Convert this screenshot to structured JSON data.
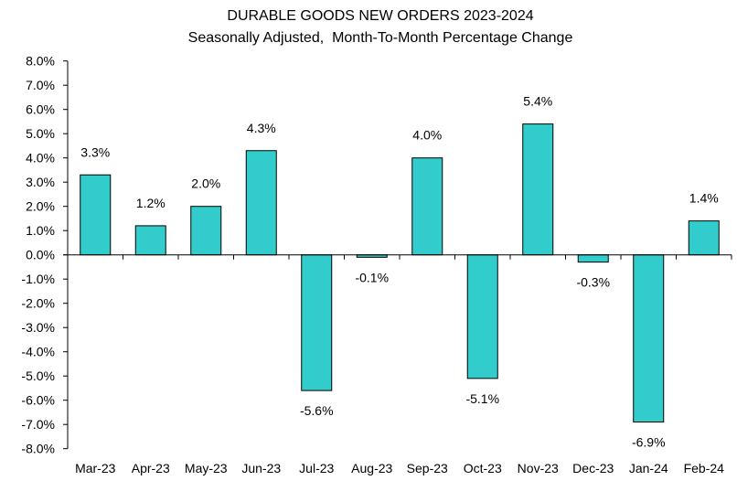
{
  "chart_data": {
    "type": "bar",
    "title": "DURABLE GOODS NEW ORDERS 2023-2024",
    "subtitle": "Seasonally Adjusted,  Month-To-Month Percentage Change",
    "xlabel": "",
    "ylabel": "",
    "categories": [
      "Mar-23",
      "Apr-23",
      "May-23",
      "Jun-23",
      "Jul-23",
      "Aug-23",
      "Sep-23",
      "Oct-23",
      "Nov-23",
      "Dec-23",
      "Jan-24",
      "Feb-24"
    ],
    "values": [
      3.3,
      1.2,
      2.0,
      4.3,
      -5.6,
      -0.1,
      4.0,
      -5.1,
      5.4,
      -0.3,
      -6.9,
      1.4
    ],
    "data_labels": [
      "3.3%",
      "1.2%",
      "2.0%",
      "4.3%",
      "-5.6%",
      "-0.1%",
      "4.0%",
      "-5.1%",
      "5.4%",
      "-0.3%",
      "-6.9%",
      "1.4%"
    ],
    "ylim": [
      -8,
      8
    ],
    "yticks": [
      "8.0%",
      "7.0%",
      "6.0%",
      "5.0%",
      "4.0%",
      "3.0%",
      "2.0%",
      "1.0%",
      "0.0%",
      "-1.0%",
      "-2.0%",
      "-3.0%",
      "-4.0%",
      "-5.0%",
      "-6.0%",
      "-7.0%",
      "-8.0%"
    ],
    "ytick_values": [
      8,
      7,
      6,
      5,
      4,
      3,
      2,
      1,
      0,
      -1,
      -2,
      -3,
      -4,
      -5,
      -6,
      -7,
      -8
    ],
    "grid": false,
    "legend": "none",
    "colors": {
      "bar_fill": "#33CCCC",
      "bar_stroke": "#000000",
      "axis": "#000000"
    }
  }
}
